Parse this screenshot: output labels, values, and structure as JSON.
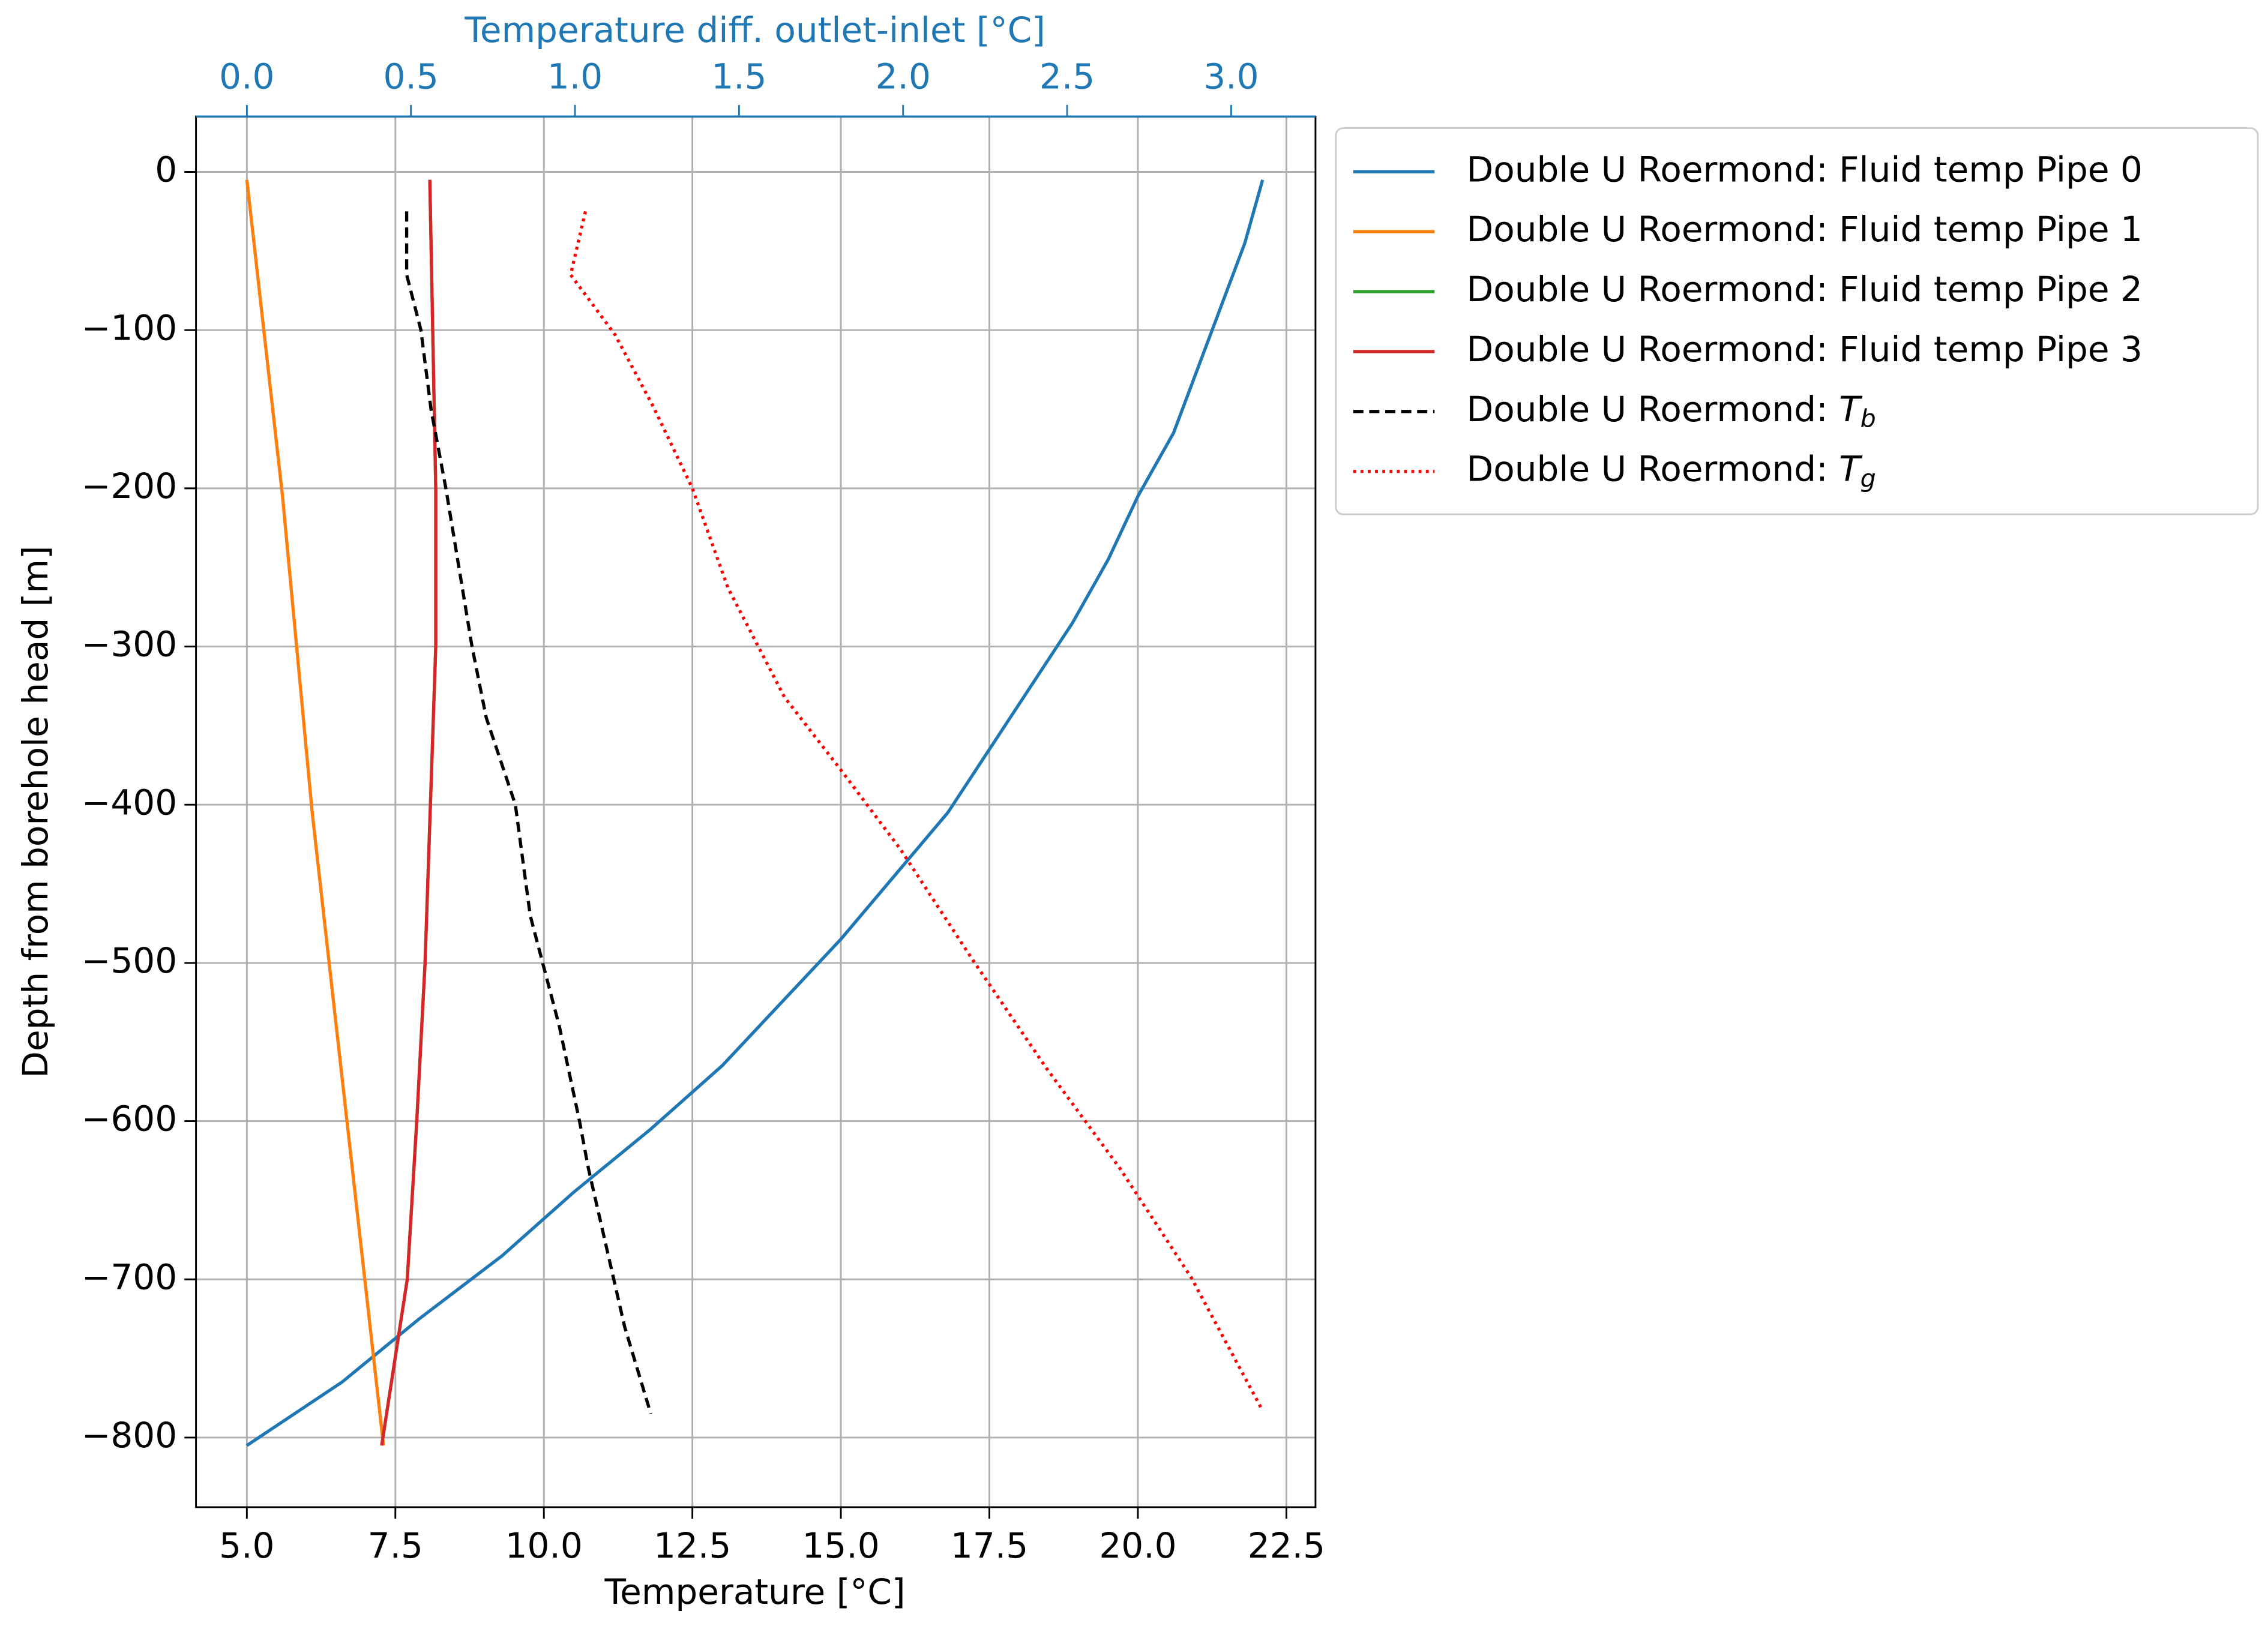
{
  "chart_data": {
    "type": "line",
    "x_label": "Temperature [°C]",
    "x2_label": "Temperature diff. outlet-inlet [°C]",
    "y_label": "Depth from borehole head [m]",
    "xlim": [
      4.144,
      22.99
    ],
    "xticks": [
      {
        "value": 5,
        "label": "5.0"
      },
      7.5,
      {
        "value": 10,
        "label": "10.0"
      },
      12.5,
      {
        "value": 15,
        "label": "15.0"
      },
      17.5,
      {
        "value": 20,
        "label": "20.0"
      },
      22.5
    ],
    "x2lim": [
      -0.155,
      3.257
    ],
    "x2ticks": [
      {
        "value": 0,
        "label": "0.0"
      },
      0.5,
      {
        "value": 1,
        "label": "1.0"
      },
      1.5,
      {
        "value": 2,
        "label": "2.0"
      },
      2.5,
      {
        "value": 3,
        "label": "3.0"
      }
    ],
    "x2_color": "#1f77b4",
    "ylim": [
      -844,
      35
    ],
    "yticks": [
      0,
      {
        "value": -100,
        "label": "−100"
      },
      {
        "value": -200,
        "label": "−200"
      },
      {
        "value": -300,
        "label": "−300"
      },
      {
        "value": -400,
        "label": "−400"
      },
      {
        "value": -500,
        "label": "−500"
      },
      {
        "value": -600,
        "label": "−600"
      },
      {
        "value": -700,
        "label": "−700"
      },
      {
        "value": -800,
        "label": "−800"
      }
    ],
    "grid": true,
    "legend": "outside upper right",
    "series": [
      {
        "name": "Double U Roermond: Fluid temp Pipe 0",
        "color": "#1f77b4",
        "linestyle": "solid",
        "x": [
          22.1,
          21.8,
          21.4,
          21.0,
          20.6,
          20.0,
          19.5,
          18.9,
          18.2,
          17.5,
          16.8,
          15.9,
          15.0,
          14.0,
          13.0,
          11.8,
          10.5,
          9.3,
          7.9,
          6.6,
          5.0
        ],
        "y": [
          -5,
          -45,
          -85,
          -125,
          -165,
          -205,
          -245,
          -285,
          -325,
          -365,
          -405,
          -445,
          -485,
          -525,
          -565,
          -605,
          -645,
          -685,
          -725,
          -765,
          -805
        ]
      },
      {
        "name": "Double U Roermond: Fluid temp Pipe 1",
        "color": "#ff7f0e",
        "linestyle": "solid",
        "x": [
          5.0,
          5.6,
          6.1,
          6.7,
          7.3
        ],
        "y": [
          -5,
          -205,
          -405,
          -605,
          -805
        ]
      },
      {
        "name": "Double U Roermond: Fluid temp Pipe 2",
        "color": "#2ca02c",
        "linestyle": "solid",
        "x": [
          8.08,
          8.18,
          8.18,
          8.0,
          7.86,
          7.7,
          7.27
        ],
        "y": [
          -5,
          -200,
          -300,
          -500,
          -600,
          -700,
          -805
        ]
      },
      {
        "name": "Double U Roermond: Fluid temp Pipe 3",
        "color": "#d62728",
        "linestyle": "solid",
        "x": [
          8.08,
          8.18,
          8.18,
          8.0,
          7.86,
          7.7,
          7.27
        ],
        "y": [
          -5,
          -200,
          -300,
          -500,
          -600,
          -700,
          -805
        ]
      },
      {
        "name": "Double U Roermond: Tb",
        "color": "#000000",
        "linestyle": "dashed",
        "x": [
          7.69,
          7.69,
          7.93,
          8.1,
          8.35,
          8.79,
          9.03,
          9.52,
          9.77,
          10.26,
          10.6,
          10.75,
          11.36,
          11.8
        ],
        "y": [
          -25,
          -65,
          -100,
          -150,
          -200,
          -300,
          -345,
          -400,
          -470,
          -540,
          -600,
          -630,
          -730,
          -785
        ]
      },
      {
        "name": "Double U Roermond: Tg",
        "color": "#ff0000",
        "linestyle": "dotted",
        "x": [
          10.7,
          10.45,
          11.2,
          11.85,
          12.5,
          13.1,
          14.05,
          15.0,
          16.0,
          17.2,
          18.45,
          19.7,
          20.9,
          22.1
        ],
        "y": [
          -25,
          -65,
          -103,
          -149,
          -200,
          -263,
          -332,
          -378,
          -428,
          -497,
          -566,
          -630,
          -699,
          -783
        ]
      }
    ]
  }
}
